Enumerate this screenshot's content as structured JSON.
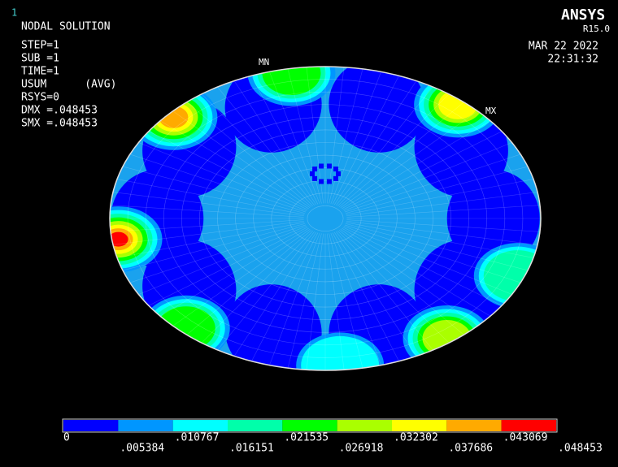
{
  "window_number": "1",
  "info": {
    "title": "NODAL SOLUTION",
    "lines": [
      "STEP=1",
      "SUB =1",
      "TIME=1",
      "USUM      (AVG)",
      "RSYS=0",
      "DMX =.048453",
      "SMX =.048453"
    ]
  },
  "brand": {
    "name": "ANSYS",
    "version": "R15.0"
  },
  "timestamp": {
    "date": "MAR 22 2022",
    "time": "22:31:32"
  },
  "markers": {
    "min": "MN",
    "max": "MX"
  },
  "legend": {
    "colors": [
      "#0000ff",
      "#0096ff",
      "#00ffff",
      "#00ffaa",
      "#00ff00",
      "#aaff00",
      "#ffff00",
      "#ffaa00",
      "#ff0000"
    ],
    "labels": [
      "0",
      ".005384",
      ".010767",
      ".016151",
      ".021535",
      ".026918",
      ".032302",
      ".037686",
      ".043069",
      ".048453"
    ]
  }
}
